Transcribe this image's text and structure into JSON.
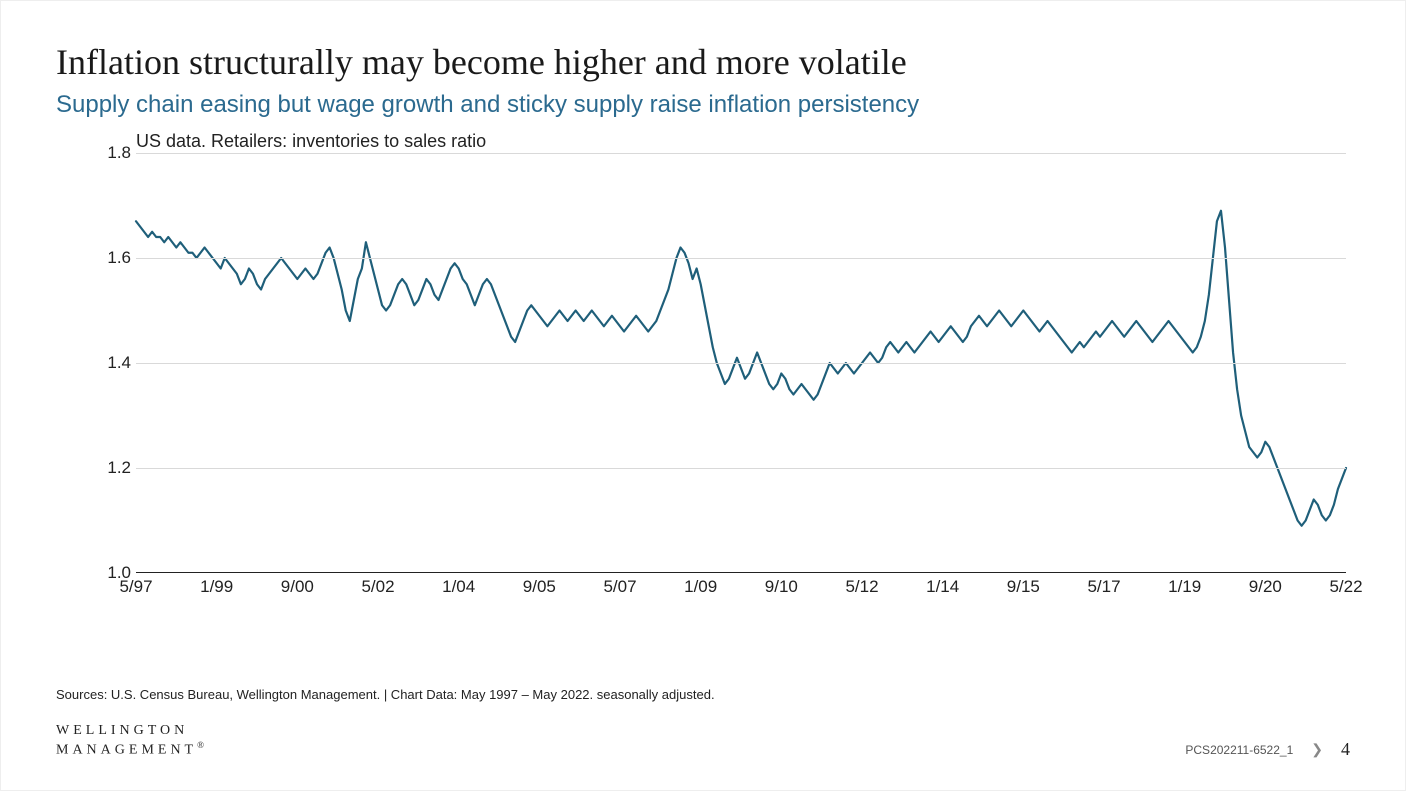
{
  "title": "Inflation structurally may become higher and more volatile",
  "subtitle": "Supply chain easing but wage growth and sticky supply raise inflation persistency",
  "chart": {
    "type": "line",
    "description": "US data. Retailers: inventories to sales ratio",
    "line_color": "#1f5f7a",
    "line_width": 2.2,
    "background_color": "#ffffff",
    "grid_color": "#d9d9d9",
    "axis_color": "#222222",
    "ylim": [
      1.0,
      1.8
    ],
    "ytick_step": 0.2,
    "ytick_labels": [
      "1.0",
      "1.2",
      "1.4",
      "1.6",
      "1.8"
    ],
    "ytick_values": [
      1.0,
      1.2,
      1.4,
      1.6,
      1.8
    ],
    "x_start_index": 0,
    "x_end_index": 300,
    "xtick_labels": [
      "5/97",
      "1/99",
      "9/00",
      "5/02",
      "1/04",
      "9/05",
      "5/07",
      "1/09",
      "9/10",
      "5/12",
      "1/14",
      "9/15",
      "5/17",
      "1/19",
      "9/20",
      "5/22"
    ],
    "xtick_positions": [
      0,
      20,
      40,
      60,
      80,
      100,
      120,
      140,
      160,
      180,
      200,
      220,
      240,
      260,
      280,
      300
    ],
    "label_fontsize": 17,
    "desc_fontsize": 18,
    "values": [
      1.67,
      1.66,
      1.65,
      1.64,
      1.65,
      1.64,
      1.64,
      1.63,
      1.64,
      1.63,
      1.62,
      1.63,
      1.62,
      1.61,
      1.61,
      1.6,
      1.61,
      1.62,
      1.61,
      1.6,
      1.59,
      1.58,
      1.6,
      1.59,
      1.58,
      1.57,
      1.55,
      1.56,
      1.58,
      1.57,
      1.55,
      1.54,
      1.56,
      1.57,
      1.58,
      1.59,
      1.6,
      1.59,
      1.58,
      1.57,
      1.56,
      1.57,
      1.58,
      1.57,
      1.56,
      1.57,
      1.59,
      1.61,
      1.62,
      1.6,
      1.57,
      1.54,
      1.5,
      1.48,
      1.52,
      1.56,
      1.58,
      1.63,
      1.6,
      1.57,
      1.54,
      1.51,
      1.5,
      1.51,
      1.53,
      1.55,
      1.56,
      1.55,
      1.53,
      1.51,
      1.52,
      1.54,
      1.56,
      1.55,
      1.53,
      1.52,
      1.54,
      1.56,
      1.58,
      1.59,
      1.58,
      1.56,
      1.55,
      1.53,
      1.51,
      1.53,
      1.55,
      1.56,
      1.55,
      1.53,
      1.51,
      1.49,
      1.47,
      1.45,
      1.44,
      1.46,
      1.48,
      1.5,
      1.51,
      1.5,
      1.49,
      1.48,
      1.47,
      1.48,
      1.49,
      1.5,
      1.49,
      1.48,
      1.49,
      1.5,
      1.49,
      1.48,
      1.49,
      1.5,
      1.49,
      1.48,
      1.47,
      1.48,
      1.49,
      1.48,
      1.47,
      1.46,
      1.47,
      1.48,
      1.49,
      1.48,
      1.47,
      1.46,
      1.47,
      1.48,
      1.5,
      1.52,
      1.54,
      1.57,
      1.6,
      1.62,
      1.61,
      1.59,
      1.56,
      1.58,
      1.55,
      1.51,
      1.47,
      1.43,
      1.4,
      1.38,
      1.36,
      1.37,
      1.39,
      1.41,
      1.39,
      1.37,
      1.38,
      1.4,
      1.42,
      1.4,
      1.38,
      1.36,
      1.35,
      1.36,
      1.38,
      1.37,
      1.35,
      1.34,
      1.35,
      1.36,
      1.35,
      1.34,
      1.33,
      1.34,
      1.36,
      1.38,
      1.4,
      1.39,
      1.38,
      1.39,
      1.4,
      1.39,
      1.38,
      1.39,
      1.4,
      1.41,
      1.42,
      1.41,
      1.4,
      1.41,
      1.43,
      1.44,
      1.43,
      1.42,
      1.43,
      1.44,
      1.43,
      1.42,
      1.43,
      1.44,
      1.45,
      1.46,
      1.45,
      1.44,
      1.45,
      1.46,
      1.47,
      1.46,
      1.45,
      1.44,
      1.45,
      1.47,
      1.48,
      1.49,
      1.48,
      1.47,
      1.48,
      1.49,
      1.5,
      1.49,
      1.48,
      1.47,
      1.48,
      1.49,
      1.5,
      1.49,
      1.48,
      1.47,
      1.46,
      1.47,
      1.48,
      1.47,
      1.46,
      1.45,
      1.44,
      1.43,
      1.42,
      1.43,
      1.44,
      1.43,
      1.44,
      1.45,
      1.46,
      1.45,
      1.46,
      1.47,
      1.48,
      1.47,
      1.46,
      1.45,
      1.46,
      1.47,
      1.48,
      1.47,
      1.46,
      1.45,
      1.44,
      1.45,
      1.46,
      1.47,
      1.48,
      1.47,
      1.46,
      1.45,
      1.44,
      1.43,
      1.42,
      1.43,
      1.45,
      1.48,
      1.53,
      1.6,
      1.67,
      1.69,
      1.62,
      1.52,
      1.42,
      1.35,
      1.3,
      1.27,
      1.24,
      1.23,
      1.22,
      1.23,
      1.25,
      1.24,
      1.22,
      1.2,
      1.18,
      1.16,
      1.14,
      1.12,
      1.1,
      1.09,
      1.1,
      1.12,
      1.14,
      1.13,
      1.11,
      1.1,
      1.11,
      1.13,
      1.16,
      1.18,
      1.2
    ]
  },
  "sources": "Sources: U.S. Census Bureau, Wellington Management. | Chart Data: May 1997 – May 2022. seasonally adjusted.",
  "logo_line1": "WELLINGTON",
  "logo_line2": "MANAGEMENT",
  "logo_reg": "®",
  "doc_code": "PCS202211-6522_1",
  "page_number": "4"
}
